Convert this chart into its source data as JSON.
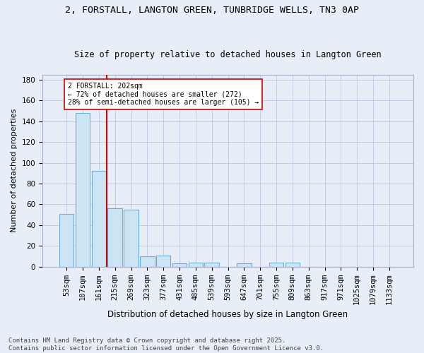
{
  "title1": "2, FORSTALL, LANGTON GREEN, TUNBRIDGE WELLS, TN3 0AP",
  "title2": "Size of property relative to detached houses in Langton Green",
  "xlabel": "Distribution of detached houses by size in Langton Green",
  "ylabel": "Number of detached properties",
  "categories": [
    "53sqm",
    "107sqm",
    "161sqm",
    "215sqm",
    "269sqm",
    "323sqm",
    "377sqm",
    "431sqm",
    "485sqm",
    "539sqm",
    "593sqm",
    "647sqm",
    "701sqm",
    "755sqm",
    "809sqm",
    "863sqm",
    "917sqm",
    "971sqm",
    "1025sqm",
    "1079sqm",
    "1133sqm"
  ],
  "values": [
    51,
    148,
    92,
    56,
    55,
    10,
    11,
    3,
    4,
    4,
    0,
    3,
    0,
    4,
    4,
    0,
    0,
    0,
    0,
    0,
    0
  ],
  "bar_color": "#cce5f5",
  "bar_edge_color": "#6aaed6",
  "vline_color": "#cc0000",
  "annotation_line1": "2 FORSTALL: 202sqm",
  "annotation_line2": "← 72% of detached houses are smaller (272)",
  "annotation_line3": "28% of semi-detached houses are larger (105) →",
  "annotation_box_color": "white",
  "annotation_box_edge": "#cc0000",
  "ylim": [
    0,
    185
  ],
  "yticks": [
    0,
    20,
    40,
    60,
    80,
    100,
    120,
    140,
    160,
    180
  ],
  "footer1": "Contains HM Land Registry data © Crown copyright and database right 2025.",
  "footer2": "Contains public sector information licensed under the Open Government Licence v3.0.",
  "bg_color": "#e8eef8",
  "grid_color": "#b8c8e0",
  "title1_fontsize": 9.5,
  "title2_fontsize": 8.5,
  "ylabel_fontsize": 8,
  "xlabel_fontsize": 8.5,
  "tick_fontsize": 7.5,
  "footer_fontsize": 6.5
}
